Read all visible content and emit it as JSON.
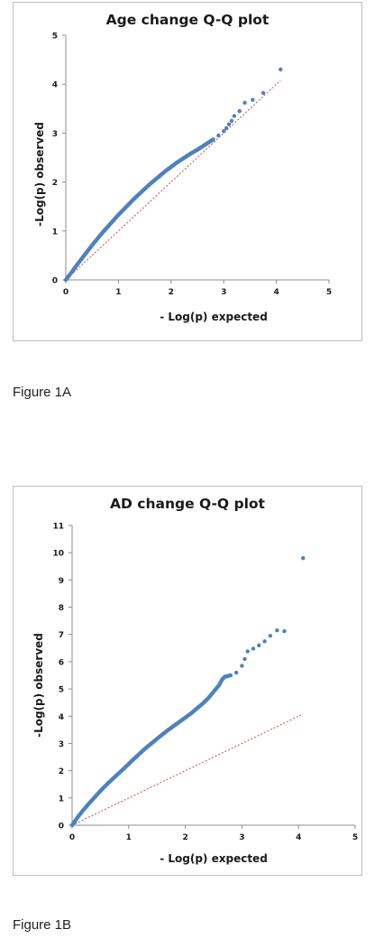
{
  "chart_data": [
    {
      "type": "scatter",
      "title": "Age change Q-Q plot",
      "xlabel": "- Log(p) expected",
      "ylabel": "-Log(p) observed",
      "xlim": [
        0,
        5
      ],
      "ylim": [
        0,
        5
      ],
      "x_ticks": [
        "0",
        "1",
        "2",
        "3",
        "4",
        "5"
      ],
      "y_ticks": [
        "0",
        "1",
        "2",
        "3",
        "4",
        "5"
      ],
      "grid": false,
      "legend": "none",
      "point_color": "#4f81bd",
      "reference_line_color": "#c0504d",
      "series": [
        {
          "x": [
            0,
            0.1,
            0.2,
            0.3,
            0.4,
            0.5,
            0.6,
            0.7,
            0.8,
            0.9,
            1.0,
            1.1,
            1.2,
            1.3,
            1.4,
            1.5,
            1.6,
            1.7,
            1.8,
            1.9,
            2.0,
            2.1,
            2.2,
            2.3,
            2.4,
            2.5,
            2.6,
            2.7,
            2.8,
            2.9,
            3.0,
            3.05,
            3.1,
            3.15,
            3.2,
            3.3,
            3.4,
            3.55,
            3.75,
            4.08
          ],
          "y": [
            0,
            0.14,
            0.29,
            0.43,
            0.57,
            0.71,
            0.84,
            0.97,
            1.09,
            1.21,
            1.33,
            1.44,
            1.55,
            1.66,
            1.76,
            1.86,
            1.96,
            2.05,
            2.14,
            2.23,
            2.31,
            2.39,
            2.46,
            2.53,
            2.6,
            2.66,
            2.73,
            2.8,
            2.87,
            2.95,
            3.04,
            3.1,
            3.18,
            3.25,
            3.35,
            3.45,
            3.62,
            3.68,
            3.82,
            4.3
          ]
        },
        {
          "x": [
            0,
            4.08
          ],
          "y": [
            0,
            4.08
          ]
        }
      ]
    },
    {
      "type": "scatter",
      "title": "AD change Q-Q plot",
      "xlabel": "- Log(p) expected",
      "ylabel": "-Log(p) observed",
      "xlim": [
        0,
        5
      ],
      "ylim": [
        0,
        11
      ],
      "x_ticks": [
        "0",
        "1",
        "2",
        "3",
        "4",
        "5"
      ],
      "y_ticks": [
        "0",
        "1",
        "2",
        "3",
        "4",
        "5",
        "6",
        "7",
        "8",
        "9",
        "10",
        "11"
      ],
      "grid": false,
      "legend": "none",
      "point_color": "#4f81bd",
      "reference_line_color": "#c0504d",
      "series": [
        {
          "x": [
            0,
            0.1,
            0.2,
            0.3,
            0.4,
            0.5,
            0.6,
            0.7,
            0.8,
            0.9,
            1.0,
            1.1,
            1.2,
            1.3,
            1.4,
            1.5,
            1.6,
            1.7,
            1.8,
            1.9,
            2.0,
            2.1,
            2.2,
            2.3,
            2.4,
            2.5,
            2.6,
            2.65,
            2.7,
            2.8,
            2.9,
            3.0,
            3.05,
            3.1,
            3.2,
            3.3,
            3.4,
            3.5,
            3.62,
            3.75,
            4.08
          ],
          "y": [
            0,
            0.3,
            0.56,
            0.8,
            1.03,
            1.26,
            1.47,
            1.67,
            1.86,
            2.05,
            2.25,
            2.45,
            2.64,
            2.83,
            3.0,
            3.17,
            3.34,
            3.5,
            3.65,
            3.8,
            3.95,
            4.1,
            4.28,
            4.45,
            4.65,
            4.9,
            5.15,
            5.35,
            5.45,
            5.5,
            5.6,
            5.85,
            6.1,
            6.38,
            6.48,
            6.6,
            6.75,
            6.95,
            7.15,
            7.12,
            9.8
          ]
        },
        {
          "x": [
            0,
            4.08
          ],
          "y": [
            0,
            4.08
          ]
        }
      ]
    }
  ],
  "captions": [
    "Figure 1A",
    "Figure 1B"
  ]
}
